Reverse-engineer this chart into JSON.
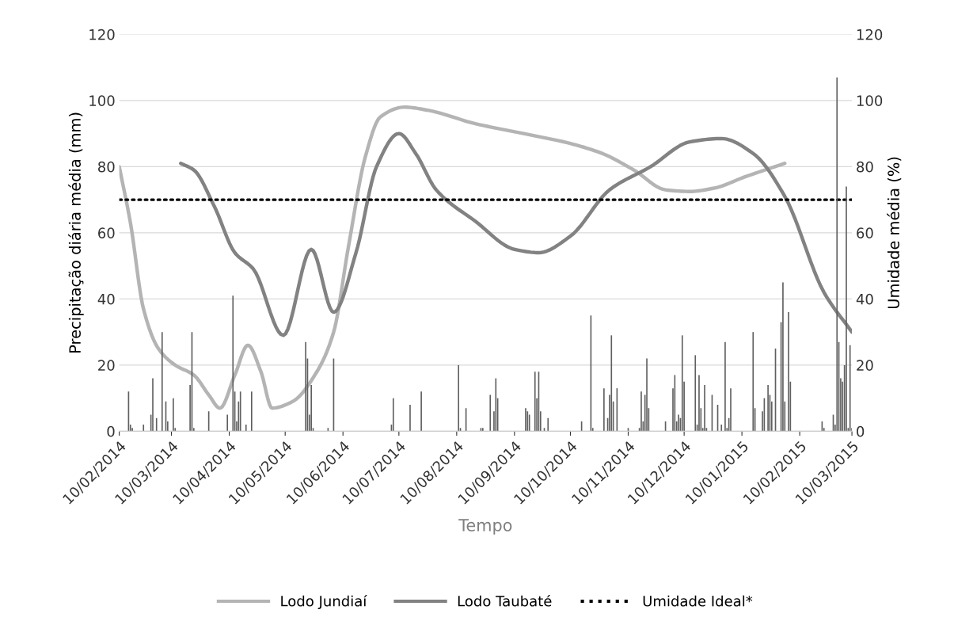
{
  "chart_data": {
    "type": "bar",
    "xlabel": "Tempo",
    "ylabel": "Precipitação diária média (mm)",
    "y2label": "Umidade média (%)",
    "xlim": [
      "2014-02-10",
      "2015-03-10"
    ],
    "xticks": [
      {
        "value": "2014-02-10",
        "label": "10/02/2014"
      },
      {
        "value": "2014-03-10",
        "label": "10/03/2014"
      },
      {
        "value": "2014-04-10",
        "label": "10/04/2014"
      },
      {
        "value": "2014-05-10",
        "label": "10/05/2014"
      },
      {
        "value": "2014-06-10",
        "label": "10/06/2014"
      },
      {
        "value": "2014-07-10",
        "label": "10/07/2014"
      },
      {
        "value": "2014-08-10",
        "label": "10/08/2014"
      },
      {
        "value": "2014-09-10",
        "label": "10/09/2014"
      },
      {
        "value": "2014-10-10",
        "label": "10/10/2014"
      },
      {
        "value": "2014-11-10",
        "label": "10/11/2014"
      },
      {
        "value": "2014-12-10",
        "label": "10/12/2014"
      },
      {
        "value": "2015-01-10",
        "label": "10/01/2015"
      },
      {
        "value": "2015-02-10",
        "label": "10/02/2015"
      },
      {
        "value": "2015-03-10",
        "label": "10/03/2015"
      }
    ],
    "ylim": [
      0,
      120
    ],
    "yticks": [
      0,
      20,
      40,
      60,
      80,
      100,
      120
    ],
    "y2lim": [
      0,
      120
    ],
    "y2ticks": [
      0,
      20,
      40,
      60,
      80,
      100,
      120
    ],
    "grid": "y",
    "legend": "bottom",
    "series": [
      {
        "color": "#5f5f5f",
        "x": [
          "2014-02-15",
          "2014-02-16",
          "2014-02-17",
          "2014-02-23",
          "2014-02-27",
          "2014-02-28",
          "2014-03-02",
          "2014-03-05",
          "2014-03-07",
          "2014-03-08",
          "2014-03-11",
          "2014-03-12",
          "2014-03-20",
          "2014-03-21",
          "2014-03-22",
          "2014-03-30",
          "2014-04-09",
          "2014-04-12",
          "2014-04-13",
          "2014-04-14",
          "2014-04-15",
          "2014-04-16",
          "2014-04-19",
          "2014-04-22",
          "2014-05-21",
          "2014-05-22",
          "2014-05-23",
          "2014-05-24",
          "2014-05-25",
          "2014-06-02",
          "2014-06-05",
          "2014-07-06",
          "2014-07-07",
          "2014-07-16",
          "2014-07-22",
          "2014-08-11",
          "2014-08-12",
          "2014-08-15",
          "2014-08-23",
          "2014-08-24",
          "2014-08-28",
          "2014-08-30",
          "2014-08-31",
          "2014-09-01",
          "2014-09-16",
          "2014-09-17",
          "2014-09-18",
          "2014-09-21",
          "2014-09-22",
          "2014-09-23",
          "2014-09-24",
          "2014-09-26",
          "2014-09-28",
          "2014-10-16",
          "2014-10-21",
          "2014-10-22",
          "2014-10-28",
          "2014-10-30",
          "2014-10-31",
          "2014-11-01",
          "2014-11-02",
          "2014-11-04",
          "2014-11-10",
          "2014-11-16",
          "2014-11-17",
          "2014-11-18",
          "2014-11-19",
          "2014-11-20",
          "2014-11-21",
          "2014-11-30",
          "2014-12-04",
          "2014-12-05",
          "2014-12-06",
          "2014-12-07",
          "2014-12-08",
          "2014-12-09",
          "2014-12-10",
          "2014-12-16",
          "2014-12-17",
          "2014-12-18",
          "2014-12-19",
          "2014-12-20",
          "2014-12-21",
          "2014-12-22",
          "2014-12-25",
          "2014-12-28",
          "2014-12-30",
          "2015-01-01",
          "2015-01-02",
          "2015-01-03",
          "2015-01-04",
          "2015-01-16",
          "2015-01-17",
          "2015-01-21",
          "2015-01-22",
          "2015-01-24",
          "2015-01-25",
          "2015-01-26",
          "2015-01-28",
          "2015-01-31",
          "2015-02-01",
          "2015-02-02",
          "2015-02-04",
          "2015-02-05",
          "2015-02-22",
          "2015-02-23",
          "2015-02-28",
          "2015-03-01",
          "2015-03-02",
          "2015-03-03",
          "2015-03-04",
          "2015-03-05",
          "2015-03-06",
          "2015-03-07",
          "2015-03-08",
          "2015-03-09",
          "2015-03-10"
        ],
        "values": [
          12,
          2,
          1,
          2,
          5,
          16,
          4,
          30,
          9,
          3,
          10,
          1,
          14,
          30,
          1,
          6,
          5,
          41,
          12,
          3,
          9,
          12,
          2,
          12,
          27,
          22,
          5,
          14,
          1,
          1,
          22,
          2,
          10,
          8,
          12,
          20,
          1,
          7,
          1,
          1,
          11,
          6,
          16,
          10,
          7,
          6,
          5,
          18,
          10,
          18,
          6,
          1,
          4,
          3,
          35,
          1,
          13,
          4,
          11,
          29,
          9,
          13,
          1,
          1,
          12,
          3,
          11,
          22,
          7,
          3,
          13,
          17,
          3,
          5,
          4,
          29,
          15,
          23,
          2,
          17,
          7,
          1,
          14,
          1,
          11,
          8,
          2,
          27,
          1,
          4,
          13,
          30,
          7,
          6,
          10,
          14,
          11,
          9,
          25,
          33,
          45,
          9,
          36,
          15,
          3,
          1,
          5,
          2,
          107,
          27,
          16,
          15,
          20,
          74,
          1,
          26,
          1
        ]
      },
      {
        "type": "line",
        "axis": "y2",
        "name": "Lodo Jundiaí",
        "color": "#b4b4b4",
        "line_style": "solid",
        "x": [
          "2014-02-10",
          "2014-02-16",
          "2014-02-23",
          "2014-03-03",
          "2014-03-12",
          "2014-03-22",
          "2014-03-30",
          "2014-04-05",
          "2014-04-13",
          "2014-04-20",
          "2014-04-27",
          "2014-05-03",
          "2014-05-14",
          "2014-05-27",
          "2014-06-05",
          "2014-06-13",
          "2014-06-22",
          "2014-06-30",
          "2014-07-13",
          "2014-07-26",
          "2014-08-20",
          "2014-09-15",
          "2014-10-10",
          "2014-10-27",
          "2014-11-13",
          "2014-11-30",
          "2014-12-13",
          "2014-12-26",
          "2015-01-12",
          "2015-02-02"
        ],
        "values": [
          80,
          63,
          37,
          25,
          20,
          17,
          11,
          7,
          17,
          26,
          18,
          7,
          9,
          18,
          30,
          56,
          83,
          95,
          98,
          97,
          93,
          90,
          87,
          84,
          79,
          73,
          72.5,
          73.5,
          77,
          81
        ]
      },
      {
        "type": "line",
        "axis": "y2",
        "name": "Lodo Taubaté",
        "color": "#828282",
        "line_style": "solid",
        "x": [
          "2014-03-15",
          "2014-03-22",
          "2014-04-02",
          "2014-04-13",
          "2014-04-23",
          "2014-05-09",
          "2014-05-24",
          "2014-06-05",
          "2014-06-17",
          "2014-06-28",
          "2014-07-10",
          "2014-07-19",
          "2014-07-30",
          "2014-08-20",
          "2014-09-10",
          "2014-09-23",
          "2014-10-10",
          "2014-10-31",
          "2014-11-22",
          "2014-12-13",
          "2014-12-30",
          "2015-01-16",
          "2015-02-02",
          "2015-02-23",
          "2015-03-10"
        ],
        "values": [
          81,
          79,
          68,
          54,
          49,
          29,
          55,
          36,
          54,
          80,
          90,
          84,
          73,
          63.5,
          55,
          54,
          59,
          73,
          80,
          87.5,
          88.5,
          84,
          71,
          42,
          30
        ]
      },
      {
        "type": "line",
        "axis": "y2",
        "name": "Umidade Ideal*",
        "color": "#000000",
        "line_style": "dotted",
        "x": [
          "2014-02-10",
          "2015-03-10"
        ],
        "values": [
          70,
          70
        ]
      }
    ]
  }
}
